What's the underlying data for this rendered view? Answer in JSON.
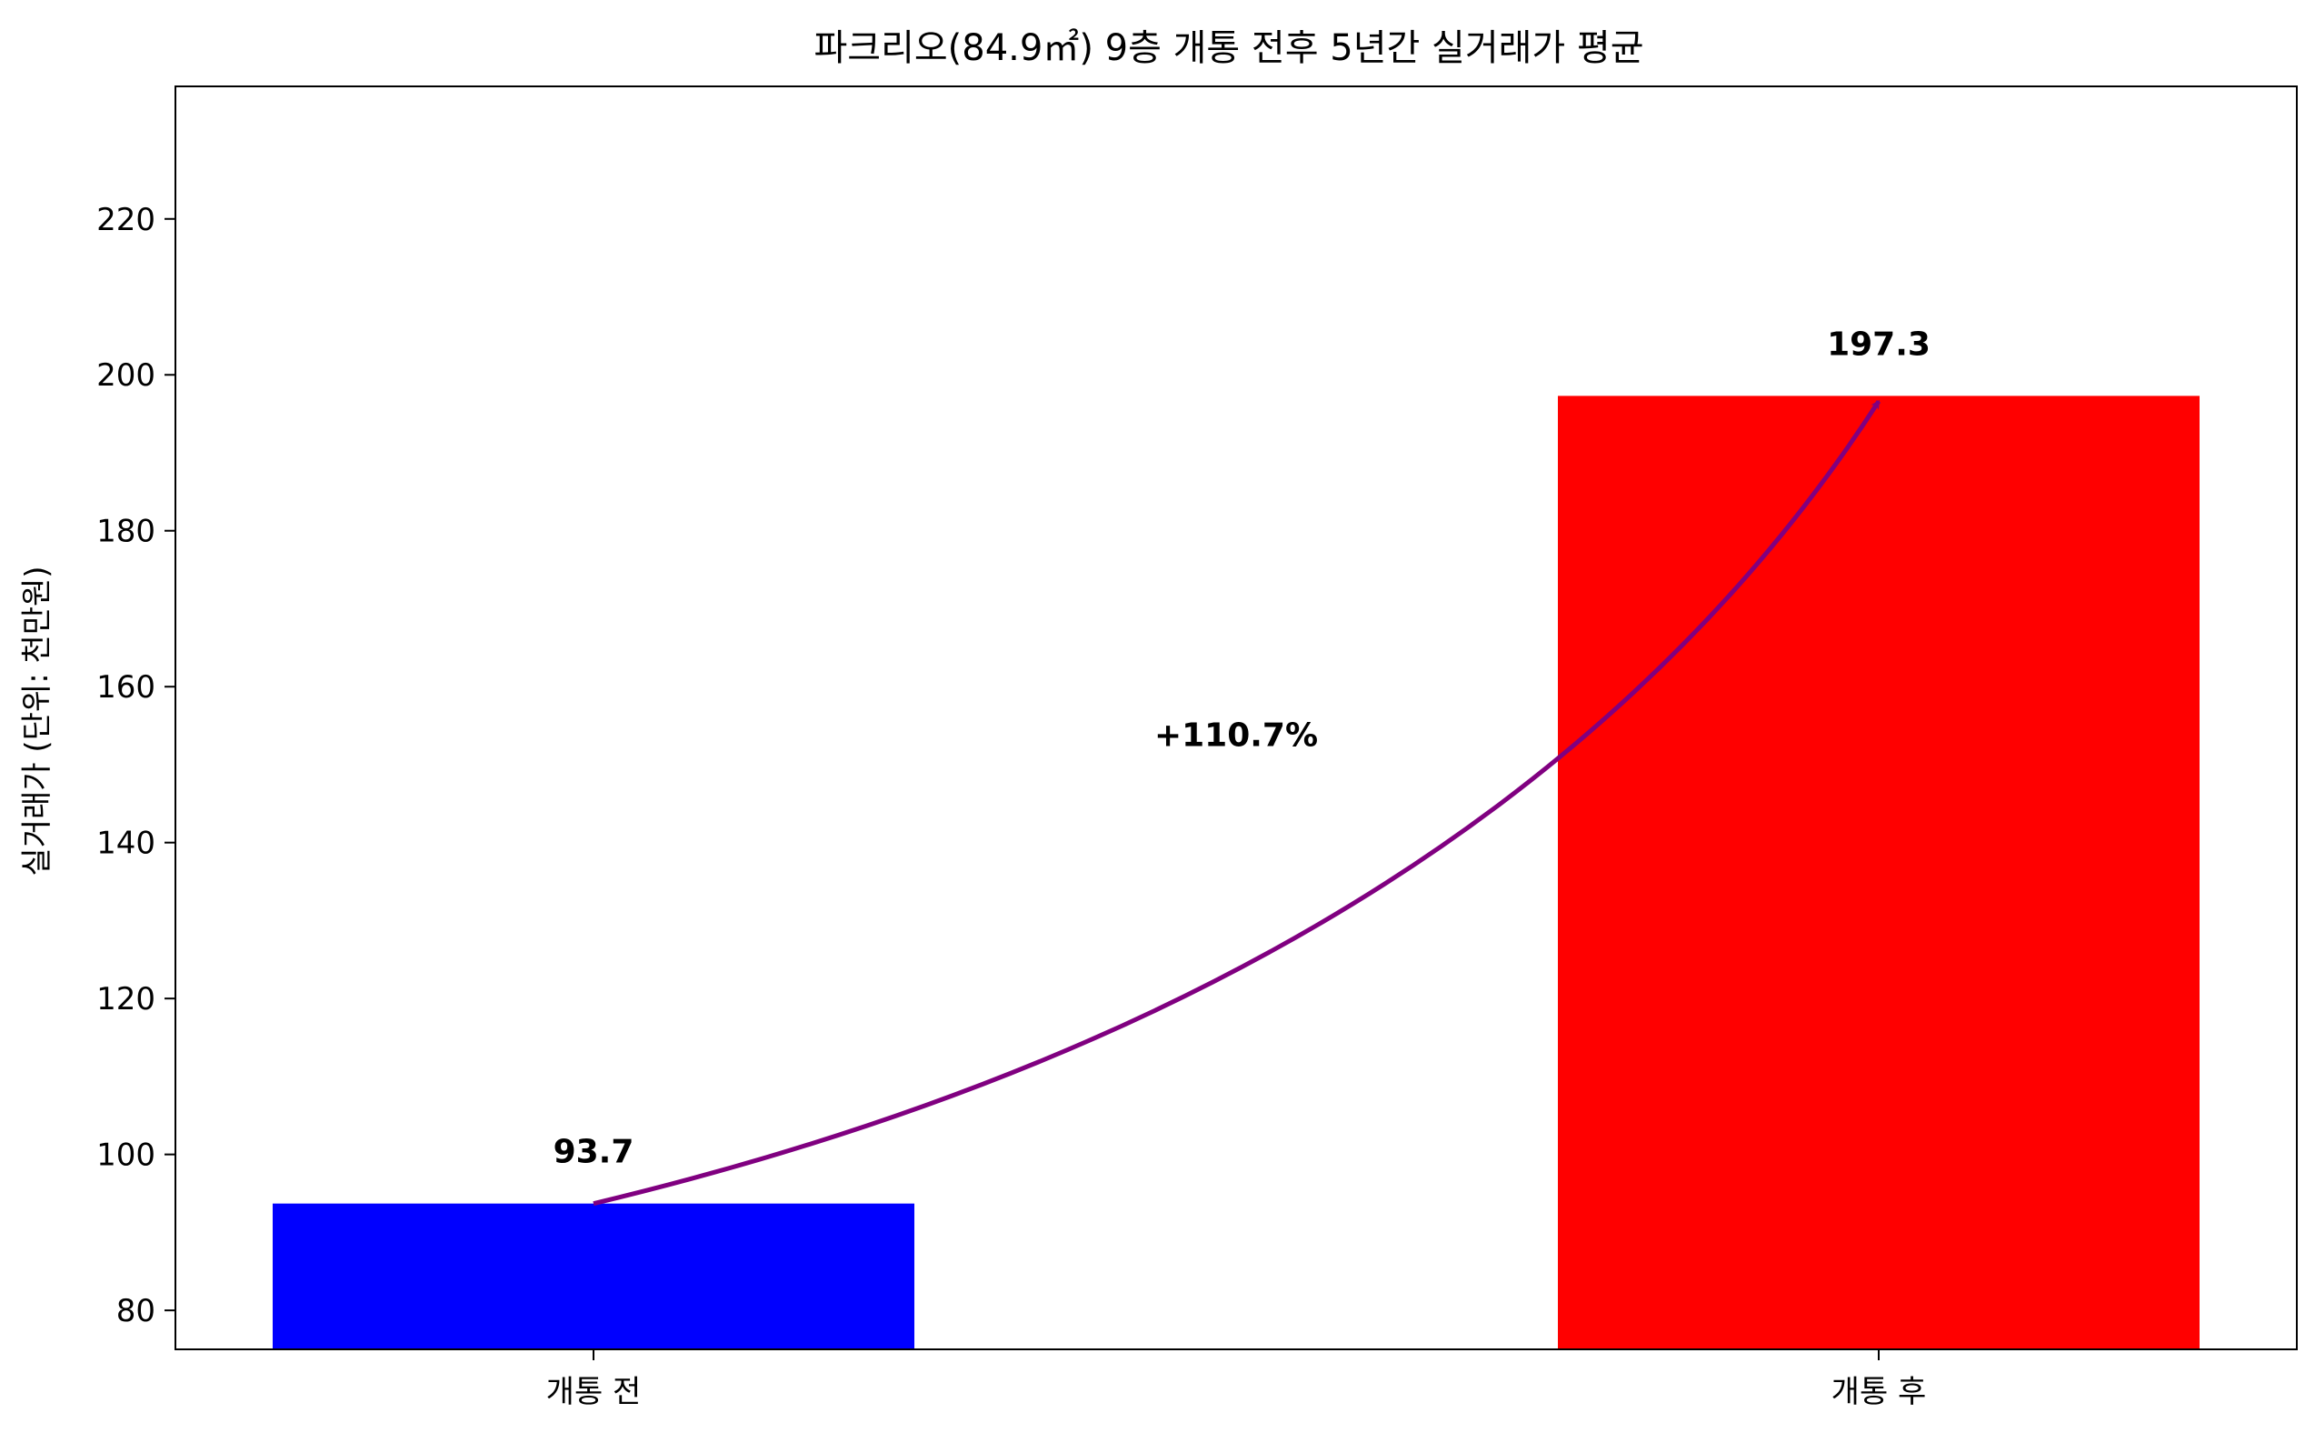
{
  "chart_data": {
    "type": "bar",
    "title": "파크리오(84.9㎡) 9층 개통 전후 5년간 실거래가 평균",
    "xlabel": "",
    "ylabel": "실거래가 (단위: 천만원)",
    "categories": [
      "개통 전",
      "개통 후"
    ],
    "values": [
      93.7,
      197.3
    ],
    "value_labels": [
      "93.7",
      "197.3"
    ],
    "ylim": [
      75,
      237
    ],
    "yticks": [
      80,
      100,
      120,
      140,
      160,
      180,
      200,
      220
    ],
    "grid": false,
    "legend": "none",
    "annotation": {
      "text": "+110.7%",
      "from_category": "개통 전",
      "to_category": "개통 후",
      "text_y": 154
    }
  },
  "colors": {
    "bars": [
      "#0000ff",
      "#ff0000"
    ],
    "arrow": "#800080",
    "axis": "#000000",
    "background": "#ffffff"
  }
}
